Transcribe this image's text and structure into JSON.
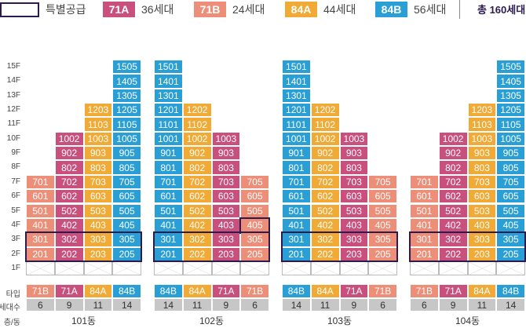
{
  "legend": {
    "special_label": "특별공급",
    "types": [
      {
        "name": "71A",
        "count": "36세대",
        "color": "#c94f7c"
      },
      {
        "name": "71B",
        "count": "24세대",
        "color": "#ec8e78"
      },
      {
        "name": "84A",
        "count": "44세대",
        "color": "#f0aa35"
      },
      {
        "name": "84B",
        "count": "56세대",
        "color": "#2a9fd6"
      }
    ],
    "total": "총 160세대"
  },
  "floors": [
    "15F",
    "14F",
    "13F",
    "12F",
    "11F",
    "10F",
    "9F",
    "8F",
    "7F",
    "6F",
    "5F",
    "4F",
    "3F",
    "2F",
    "1F"
  ],
  "row_labels": {
    "type": "타입",
    "households": "세대수",
    "floor_building": "층/동"
  },
  "buildings": [
    {
      "name": "101동",
      "columns": [
        {
          "type": "71B",
          "suffix": "01",
          "top_floor": 7,
          "households": "6"
        },
        {
          "type": "71A",
          "suffix": "02",
          "top_floor": 10,
          "households": "9"
        },
        {
          "type": "84A",
          "suffix": "03",
          "top_floor": 12,
          "households": "11"
        },
        {
          "type": "84B",
          "suffix": "05",
          "top_floor": 15,
          "households": "14"
        }
      ]
    },
    {
      "name": "102동",
      "columns": [
        {
          "type": "84B",
          "suffix": "01",
          "top_floor": 15,
          "households": "14"
        },
        {
          "type": "84A",
          "suffix": "02",
          "top_floor": 12,
          "households": "11"
        },
        {
          "type": "71A",
          "suffix": "03",
          "top_floor": 10,
          "households": "9"
        },
        {
          "type": "71B",
          "suffix": "05",
          "top_floor": 7,
          "households": "6"
        }
      ]
    },
    {
      "name": "103동",
      "columns": [
        {
          "type": "84B",
          "suffix": "01",
          "top_floor": 15,
          "households": "14"
        },
        {
          "type": "84A",
          "suffix": "02",
          "top_floor": 12,
          "households": "11"
        },
        {
          "type": "71A",
          "suffix": "03",
          "top_floor": 10,
          "households": "9"
        },
        {
          "type": "71B",
          "suffix": "05",
          "top_floor": 7,
          "households": "6"
        }
      ]
    },
    {
      "name": "104동",
      "columns": [
        {
          "type": "71B",
          "suffix": "01",
          "top_floor": 7,
          "households": "6"
        },
        {
          "type": "71A",
          "suffix": "02",
          "top_floor": 10,
          "households": "9"
        },
        {
          "type": "84A",
          "suffix": "03",
          "top_floor": 12,
          "households": "11"
        },
        {
          "type": "84B",
          "suffix": "05",
          "top_floor": 15,
          "households": "14"
        }
      ]
    }
  ]
}
